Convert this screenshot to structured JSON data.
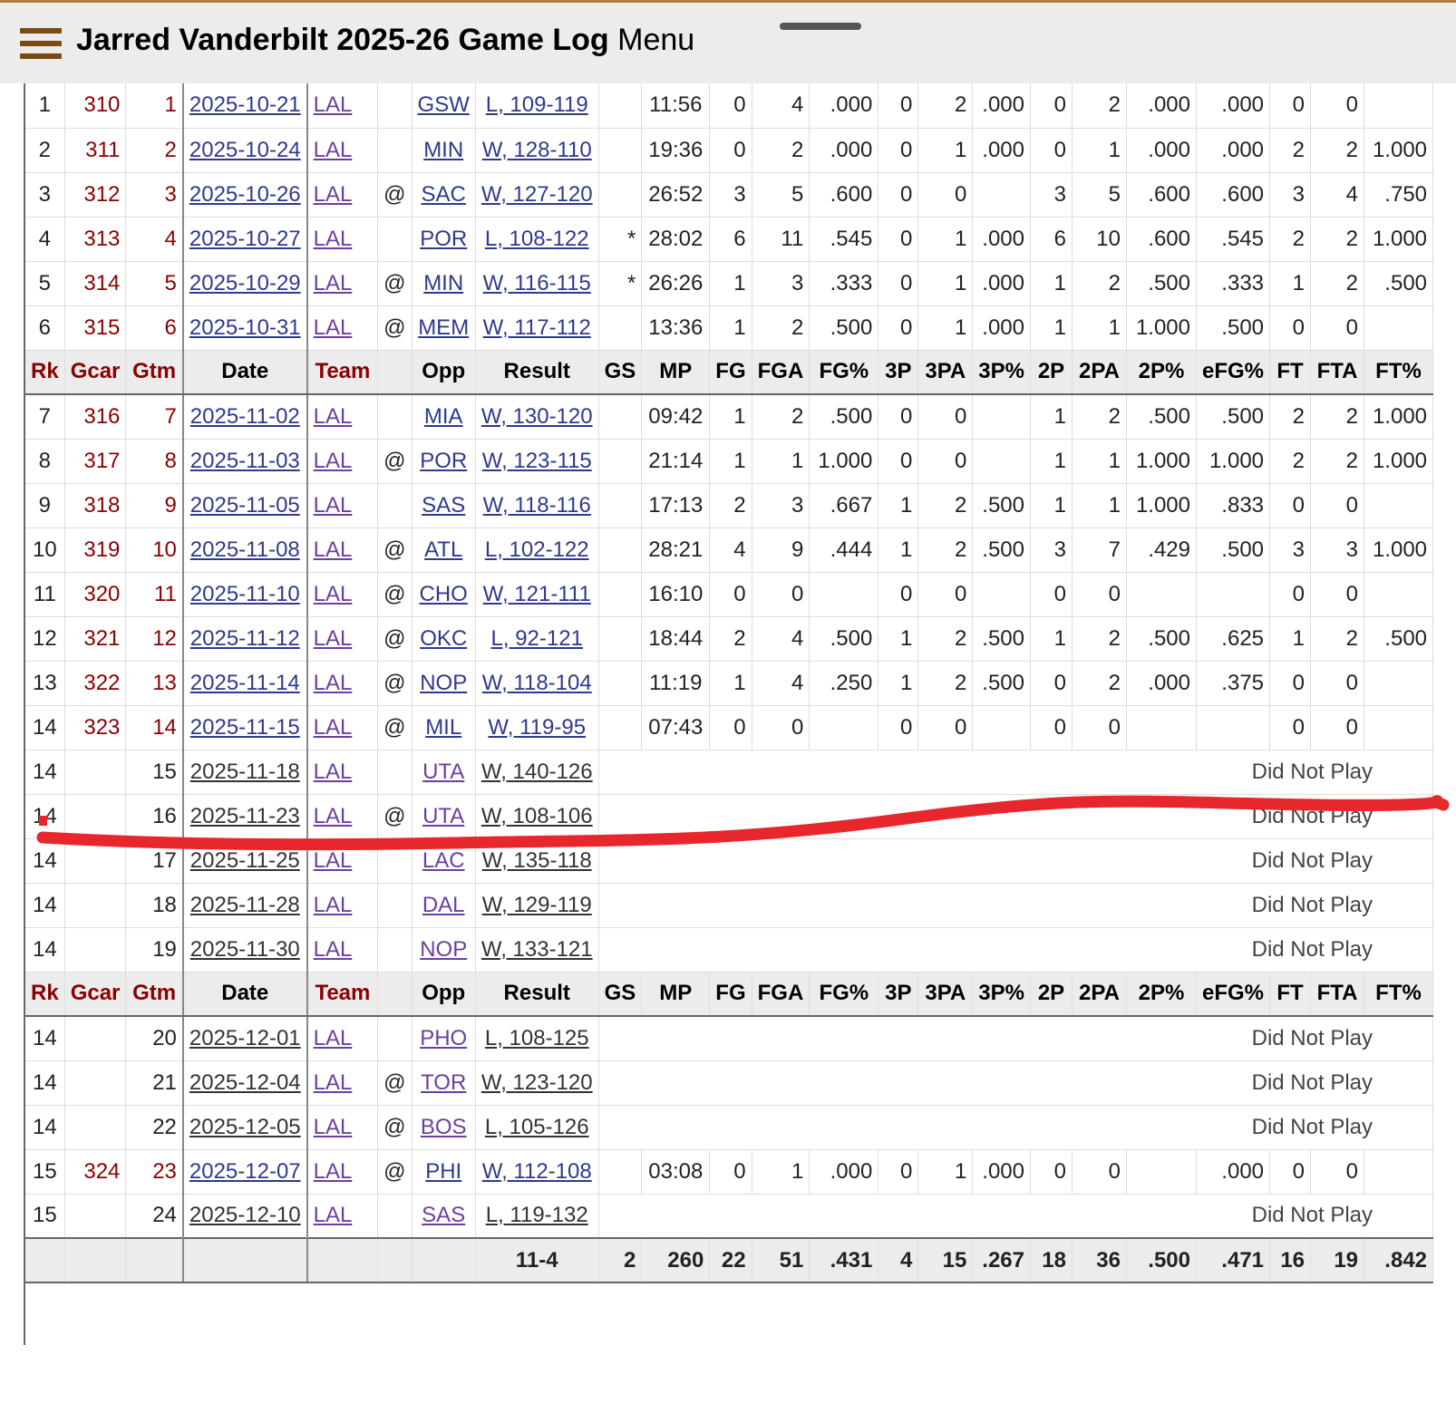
{
  "header": {
    "title_bold": "Jarred Vanderbilt 2025-26 Game Log",
    "title_menu": "Menu"
  },
  "columns": [
    "Rk",
    "Gcar",
    "Gtm",
    "Date",
    "Team",
    "",
    "Opp",
    "Result",
    "GS",
    "MP",
    "FG",
    "FGA",
    "FG%",
    "3P",
    "3PA",
    "3P%",
    "2P",
    "2PA",
    "2P%",
    "eFG%",
    "FT",
    "FTA",
    "FT%"
  ],
  "rows": [
    {
      "type": "game",
      "rk": "1",
      "gcar": "310",
      "gtm": "1",
      "date": "2025-10-21",
      "team": "LAL",
      "at": "",
      "opp": "GSW",
      "result": "L, 109-119",
      "gs": "",
      "mp": "11:56",
      "fg": "0",
      "fga": "4",
      "fgp": ".000",
      "tp": "0",
      "tpa": "2",
      "tpp": ".000",
      "twp": "0",
      "twpa": "2",
      "twpp": ".000",
      "efg": ".000",
      "ft": "0",
      "fta": "0",
      "ftp": ""
    },
    {
      "type": "game",
      "rk": "2",
      "gcar": "311",
      "gtm": "2",
      "date": "2025-10-24",
      "team": "LAL",
      "at": "",
      "opp": "MIN",
      "result": "W, 128-110",
      "gs": "",
      "mp": "19:36",
      "fg": "0",
      "fga": "2",
      "fgp": ".000",
      "tp": "0",
      "tpa": "1",
      "tpp": ".000",
      "twp": "0",
      "twpa": "1",
      "twpp": ".000",
      "efg": ".000",
      "ft": "2",
      "fta": "2",
      "ftp": "1.000"
    },
    {
      "type": "game",
      "rk": "3",
      "gcar": "312",
      "gtm": "3",
      "date": "2025-10-26",
      "team": "LAL",
      "at": "@",
      "opp": "SAC",
      "result": "W, 127-120",
      "gs": "",
      "mp": "26:52",
      "fg": "3",
      "fga": "5",
      "fgp": ".600",
      "tp": "0",
      "tpa": "0",
      "tpp": "",
      "twp": "3",
      "twpa": "5",
      "twpp": ".600",
      "efg": ".600",
      "ft": "3",
      "fta": "4",
      "ftp": ".750"
    },
    {
      "type": "game",
      "rk": "4",
      "gcar": "313",
      "gtm": "4",
      "date": "2025-10-27",
      "team": "LAL",
      "at": "",
      "opp": "POR",
      "result": "L, 108-122",
      "gs": "*",
      "mp": "28:02",
      "fg": "6",
      "fga": "11",
      "fgp": ".545",
      "tp": "0",
      "tpa": "1",
      "tpp": ".000",
      "twp": "6",
      "twpa": "10",
      "twpp": ".600",
      "efg": ".545",
      "ft": "2",
      "fta": "2",
      "ftp": "1.000"
    },
    {
      "type": "game",
      "rk": "5",
      "gcar": "314",
      "gtm": "5",
      "date": "2025-10-29",
      "team": "LAL",
      "at": "@",
      "opp": "MIN",
      "result": "W, 116-115",
      "gs": "*",
      "mp": "26:26",
      "fg": "1",
      "fga": "3",
      "fgp": ".333",
      "tp": "0",
      "tpa": "1",
      "tpp": ".000",
      "twp": "1",
      "twpa": "2",
      "twpp": ".500",
      "efg": ".333",
      "ft": "1",
      "fta": "2",
      "ftp": ".500"
    },
    {
      "type": "game",
      "rk": "6",
      "gcar": "315",
      "gtm": "6",
      "date": "2025-10-31",
      "team": "LAL",
      "at": "@",
      "opp": "MEM",
      "result": "W, 117-112",
      "gs": "",
      "mp": "13:36",
      "fg": "1",
      "fga": "2",
      "fgp": ".500",
      "tp": "0",
      "tpa": "1",
      "tpp": ".000",
      "twp": "1",
      "twpa": "1",
      "twpp": "1.000",
      "efg": ".500",
      "ft": "0",
      "fta": "0",
      "ftp": ""
    },
    {
      "type": "header"
    },
    {
      "type": "game",
      "rk": "7",
      "gcar": "316",
      "gtm": "7",
      "date": "2025-11-02",
      "team": "LAL",
      "at": "",
      "opp": "MIA",
      "result": "W, 130-120",
      "gs": "",
      "mp": "09:42",
      "fg": "1",
      "fga": "2",
      "fgp": ".500",
      "tp": "0",
      "tpa": "0",
      "tpp": "",
      "twp": "1",
      "twpa": "2",
      "twpp": ".500",
      "efg": ".500",
      "ft": "2",
      "fta": "2",
      "ftp": "1.000"
    },
    {
      "type": "game",
      "rk": "8",
      "gcar": "317",
      "gtm": "8",
      "date": "2025-11-03",
      "team": "LAL",
      "at": "@",
      "opp": "POR",
      "result": "W, 123-115",
      "gs": "",
      "mp": "21:14",
      "fg": "1",
      "fga": "1",
      "fgp": "1.000",
      "tp": "0",
      "tpa": "0",
      "tpp": "",
      "twp": "1",
      "twpa": "1",
      "twpp": "1.000",
      "efg": "1.000",
      "ft": "2",
      "fta": "2",
      "ftp": "1.000"
    },
    {
      "type": "game",
      "rk": "9",
      "gcar": "318",
      "gtm": "9",
      "date": "2025-11-05",
      "team": "LAL",
      "at": "",
      "opp": "SAS",
      "result": "W, 118-116",
      "gs": "",
      "mp": "17:13",
      "fg": "2",
      "fga": "3",
      "fgp": ".667",
      "tp": "1",
      "tpa": "2",
      "tpp": ".500",
      "twp": "1",
      "twpa": "1",
      "twpp": "1.000",
      "efg": ".833",
      "ft": "0",
      "fta": "0",
      "ftp": ""
    },
    {
      "type": "game",
      "rk": "10",
      "gcar": "319",
      "gtm": "10",
      "date": "2025-11-08",
      "team": "LAL",
      "at": "@",
      "opp": "ATL",
      "result": "L, 102-122",
      "gs": "",
      "mp": "28:21",
      "fg": "4",
      "fga": "9",
      "fgp": ".444",
      "tp": "1",
      "tpa": "2",
      "tpp": ".500",
      "twp": "3",
      "twpa": "7",
      "twpp": ".429",
      "efg": ".500",
      "ft": "3",
      "fta": "3",
      "ftp": "1.000"
    },
    {
      "type": "game",
      "rk": "11",
      "gcar": "320",
      "gtm": "11",
      "date": "2025-11-10",
      "team": "LAL",
      "at": "@",
      "opp": "CHO",
      "result": "W, 121-111",
      "gs": "",
      "mp": "16:10",
      "fg": "0",
      "fga": "0",
      "fgp": "",
      "tp": "0",
      "tpa": "0",
      "tpp": "",
      "twp": "0",
      "twpa": "0",
      "twpp": "",
      "efg": "",
      "ft": "0",
      "fta": "0",
      "ftp": ""
    },
    {
      "type": "game",
      "rk": "12",
      "gcar": "321",
      "gtm": "12",
      "date": "2025-11-12",
      "team": "LAL",
      "at": "@",
      "opp": "OKC",
      "result": "L, 92-121",
      "gs": "",
      "mp": "18:44",
      "fg": "2",
      "fga": "4",
      "fgp": ".500",
      "tp": "1",
      "tpa": "2",
      "tpp": ".500",
      "twp": "1",
      "twpa": "2",
      "twpp": ".500",
      "efg": ".625",
      "ft": "1",
      "fta": "2",
      "ftp": ".500"
    },
    {
      "type": "game",
      "rk": "13",
      "gcar": "322",
      "gtm": "13",
      "date": "2025-11-14",
      "team": "LAL",
      "at": "@",
      "opp": "NOP",
      "result": "W, 118-104",
      "gs": "",
      "mp": "11:19",
      "fg": "1",
      "fga": "4",
      "fgp": ".250",
      "tp": "1",
      "tpa": "2",
      "tpp": ".500",
      "twp": "0",
      "twpa": "2",
      "twpp": ".000",
      "efg": ".375",
      "ft": "0",
      "fta": "0",
      "ftp": ""
    },
    {
      "type": "game",
      "rk": "14",
      "gcar": "323",
      "gtm": "14",
      "date": "2025-11-15",
      "team": "LAL",
      "at": "@",
      "opp": "MIL",
      "result": "W, 119-95",
      "gs": "",
      "mp": "07:43",
      "fg": "0",
      "fga": "0",
      "fgp": "",
      "tp": "0",
      "tpa": "0",
      "tpp": "",
      "twp": "0",
      "twpa": "0",
      "twpp": "",
      "efg": "",
      "ft": "0",
      "fta": "0",
      "ftp": ""
    },
    {
      "type": "dnp",
      "rk": "14",
      "gtm": "15",
      "date": "2025-11-18",
      "team": "LAL",
      "at": "",
      "opp": "UTA",
      "result": "W, 140-126",
      "reason": "Did Not Play"
    },
    {
      "type": "dnp",
      "rk": "14",
      "gtm": "16",
      "date": "2025-11-23",
      "team": "LAL",
      "at": "@",
      "opp": "UTA",
      "result": "W, 108-106",
      "reason": "Did Not Play"
    },
    {
      "type": "dnp",
      "rk": "14",
      "gtm": "17",
      "date": "2025-11-25",
      "team": "LAL",
      "at": "",
      "opp": "LAC",
      "result": "W, 135-118",
      "reason": "Did Not Play"
    },
    {
      "type": "dnp",
      "rk": "14",
      "gtm": "18",
      "date": "2025-11-28",
      "team": "LAL",
      "at": "",
      "opp": "DAL",
      "result": "W, 129-119",
      "reason": "Did Not Play"
    },
    {
      "type": "dnp",
      "rk": "14",
      "gtm": "19",
      "date": "2025-11-30",
      "team": "LAL",
      "at": "",
      "opp": "NOP",
      "result": "W, 133-121",
      "reason": "Did Not Play"
    },
    {
      "type": "header"
    },
    {
      "type": "dnp",
      "rk": "14",
      "gtm": "20",
      "date": "2025-12-01",
      "team": "LAL",
      "at": "",
      "opp": "PHO",
      "result": "L, 108-125",
      "reason": "Did Not Play"
    },
    {
      "type": "dnp",
      "rk": "14",
      "gtm": "21",
      "date": "2025-12-04",
      "team": "LAL",
      "at": "@",
      "opp": "TOR",
      "result": "W, 123-120",
      "reason": "Did Not Play"
    },
    {
      "type": "dnp",
      "rk": "14",
      "gtm": "22",
      "date": "2025-12-05",
      "team": "LAL",
      "at": "@",
      "opp": "BOS",
      "result": "L, 105-126",
      "reason": "Did Not Play"
    },
    {
      "type": "game",
      "rk": "15",
      "gcar": "324",
      "gtm": "23",
      "date": "2025-12-07",
      "team": "LAL",
      "at": "@",
      "opp": "PHI",
      "result": "W, 112-108",
      "gs": "",
      "mp": "03:08",
      "fg": "0",
      "fga": "1",
      "fgp": ".000",
      "tp": "0",
      "tpa": "1",
      "tpp": ".000",
      "twp": "0",
      "twpa": "0",
      "twpp": "",
      "efg": ".000",
      "ft": "0",
      "fta": "0",
      "ftp": ""
    },
    {
      "type": "dnp",
      "rk": "15",
      "gtm": "24",
      "date": "2025-12-10",
      "team": "LAL",
      "at": "",
      "opp": "SAS",
      "result": "L, 119-132",
      "reason": "Did Not Play"
    }
  ],
  "totals": {
    "result": "11-4",
    "gs": "2",
    "mp": "260",
    "fg": "22",
    "fga": "51",
    "fgp": ".431",
    "tp": "4",
    "tpa": "15",
    "tpp": ".267",
    "twp": "18",
    "twpa": "36",
    "twpp": ".500",
    "efg": ".471",
    "ft": "16",
    "fta": "19",
    "ftp": ".842"
  },
  "colors": {
    "header_bg": "#ececec",
    "accent": "#8b0000",
    "link": "#2e3a8c",
    "team_link": "#6b3fa0",
    "annotation": "#e8272c",
    "menu_icon": "#7a4a12"
  }
}
